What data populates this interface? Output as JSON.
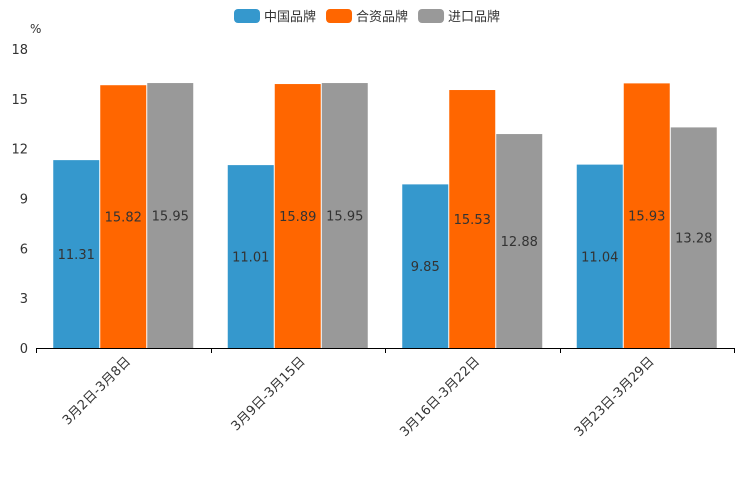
{
  "chart_data": {
    "type": "bar",
    "title": "",
    "ylabel": "%",
    "xlabel": "",
    "ylim": [
      0,
      18
    ],
    "yticks": [
      0,
      3,
      6,
      9,
      12,
      15,
      18
    ],
    "ytick_labels": [
      "0",
      "3",
      "6",
      "9",
      "12",
      "15",
      "18"
    ],
    "categories": [
      "3月2日-3月8日",
      "3月9日-3月15日",
      "3月16日-3月22日",
      "3月23日-3月29日"
    ],
    "series": [
      {
        "name": "中国品牌",
        "color": "#3598cd",
        "values": [
          11.31,
          11.01,
          9.85,
          11.04
        ],
        "labels": [
          "11.31",
          "11.01",
          "9.85",
          "11.04"
        ]
      },
      {
        "name": "合资品牌",
        "color": "#ff6600",
        "values": [
          15.82,
          15.89,
          15.53,
          15.93
        ],
        "labels": [
          "15.82",
          "15.89",
          "15.53",
          "15.93"
        ]
      },
      {
        "name": "进口品牌",
        "color": "#999999",
        "values": [
          15.95,
          15.95,
          12.88,
          13.28
        ],
        "labels": [
          "15.95",
          "15.95",
          "12.88",
          "13.28"
        ]
      }
    ],
    "legend": "top-center",
    "grid": false
  }
}
